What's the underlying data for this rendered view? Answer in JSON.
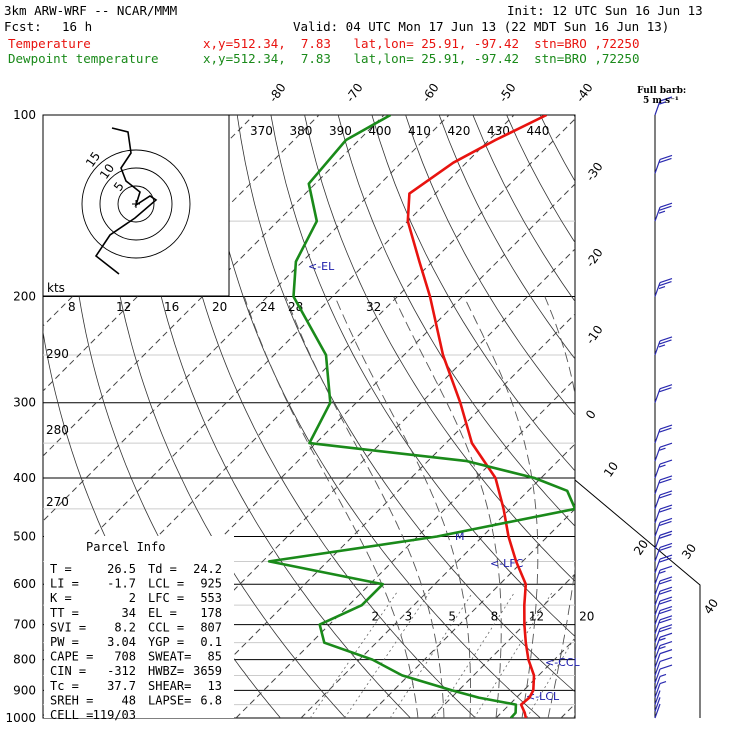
{
  "header": {
    "model": "3km ARW-WRF -- NCAR/MMM",
    "init": "Init: 12 UTC Sun 16 Jun 13",
    "fcst_label": "Fcst:",
    "fcst_value": "16 h",
    "valid": "Valid: 04 UTC Mon 17 Jun 13 (22 MDT Sun 16 Jun 13)",
    "temp_label": "Temperature",
    "dew_label": "Dewpoint temperature",
    "temp_info": "x,y=512.34,  7.83   lat,lon= 25.91, -97.42  stn=BRO ,72250",
    "dew_info": "x,y=512.34,  7.83   lat,lon= 25.91, -97.42  stn=BRO ,72250",
    "barb_legend_1": "Full barb:",
    "barb_legend_2": "5 m s⁻¹"
  },
  "colors": {
    "temperature": "#e8130f",
    "dewpoint": "#1a8a1a",
    "wind": "#2a2ab0"
  },
  "parcel": {
    "title": "Parcel Info",
    "rows": [
      [
        "T  =",
        "26.5",
        "Td =",
        "24.2"
      ],
      [
        "LI =",
        "-1.7",
        "LCL =",
        "925"
      ],
      [
        "K  =",
        "2",
        "LFC =",
        "553"
      ],
      [
        "TT =",
        "34",
        "EL  =",
        "178"
      ],
      [
        "SVI =",
        "8.2",
        "CCL =",
        "807"
      ],
      [
        "PW =",
        "3.04",
        "YGP =",
        "0.1"
      ],
      [
        "CAPE =",
        "708",
        "SWEAT=",
        "85"
      ],
      [
        "CIN =",
        "-312",
        "HWBZ=",
        "3659"
      ],
      [
        "Tc =",
        "37.7",
        "SHEAR=",
        "13"
      ],
      [
        "SREH =",
        "48",
        "LAPSE=",
        "6.8"
      ],
      [
        "CELL =",
        "119/03",
        "",
        ""
      ]
    ]
  },
  "level_labels": {
    "el": "<-EL",
    "lfc": "<-LFC",
    "ccl": "<-CCL",
    "lcl": "<-LCL",
    "hodo_unit": "kts"
  },
  "chart_data": {
    "type": "line",
    "title": "",
    "xlabel": "",
    "ylabel": "",
    "pressure_ticks": [
      100,
      200,
      300,
      400,
      500,
      600,
      700,
      800,
      900,
      1000
    ],
    "isotherm_labels": [
      -80,
      -70,
      -60,
      -50,
      -40,
      -30,
      -20,
      -10,
      0,
      10,
      20,
      30,
      40
    ],
    "theta_labels": [
      370,
      380,
      390,
      400,
      410,
      420,
      430,
      440
    ],
    "theta_left_labels": [
      290,
      280,
      270
    ],
    "mixing_ratio_labels": [
      2,
      3,
      5,
      8,
      12,
      20
    ],
    "hodo_speed_labels": [
      8,
      12,
      16,
      20,
      24,
      28,
      32
    ],
    "hodo_ring_labels": [
      5,
      10,
      15
    ],
    "series": [
      {
        "name": "Temperature",
        "points": [
          [
            1000,
            24.6
          ],
          [
            980,
            23.6
          ],
          [
            950,
            21.8
          ],
          [
            925,
            22
          ],
          [
            900,
            21.5
          ],
          [
            850,
            19.3
          ],
          [
            800,
            16
          ],
          [
            750,
            13
          ],
          [
            700,
            10
          ],
          [
            650,
            7
          ],
          [
            600,
            4
          ],
          [
            550,
            -1
          ],
          [
            500,
            -6
          ],
          [
            450,
            -11
          ],
          [
            400,
            -17
          ],
          [
            350,
            -26
          ],
          [
            300,
            -34
          ],
          [
            250,
            -44
          ],
          [
            200,
            -55
          ],
          [
            175,
            -62
          ],
          [
            150,
            -70
          ],
          [
            135,
            -74
          ],
          [
            120,
            -72
          ],
          [
            110,
            -69
          ],
          [
            100,
            -65
          ]
        ]
      },
      {
        "name": "Dewpoint temperature",
        "points": [
          [
            1000,
            22.3
          ],
          [
            980,
            22.2
          ],
          [
            950,
            21
          ],
          [
            925,
            14.2
          ],
          [
            900,
            9
          ],
          [
            850,
            -1
          ],
          [
            800,
            -8
          ],
          [
            750,
            -18
          ],
          [
            700,
            -21.5
          ],
          [
            650,
            -18
          ],
          [
            600,
            -18
          ],
          [
            550,
            -39
          ],
          [
            500,
            -17
          ],
          [
            450,
            0
          ],
          [
            420,
            -4
          ],
          [
            400,
            -11
          ],
          [
            375,
            -24
          ],
          [
            350,
            -51
          ],
          [
            300,
            -54
          ],
          [
            250,
            -62
          ],
          [
            200,
            -76
          ],
          [
            175,
            -81
          ],
          [
            150,
            -84
          ],
          [
            130,
            -91
          ],
          [
            110,
            -92
          ],
          [
            100,
            -89
          ]
        ]
      }
    ],
    "wind_speeds_ms": [
      1,
      1,
      2,
      3,
      4,
      5,
      6,
      7,
      8,
      9,
      11,
      12,
      12,
      12,
      12,
      11,
      9,
      10,
      11,
      11,
      12,
      12,
      12,
      11,
      9,
      9,
      11,
      12,
      13,
      14,
      14,
      11,
      8
    ],
    "wind_levels_hpa": [
      1000,
      975,
      950,
      925,
      900,
      875,
      850,
      825,
      800,
      775,
      750,
      725,
      700,
      675,
      650,
      625,
      600,
      575,
      550,
      525,
      500,
      475,
      450,
      425,
      400,
      375,
      350,
      300,
      250,
      200,
      150,
      125,
      100
    ]
  }
}
